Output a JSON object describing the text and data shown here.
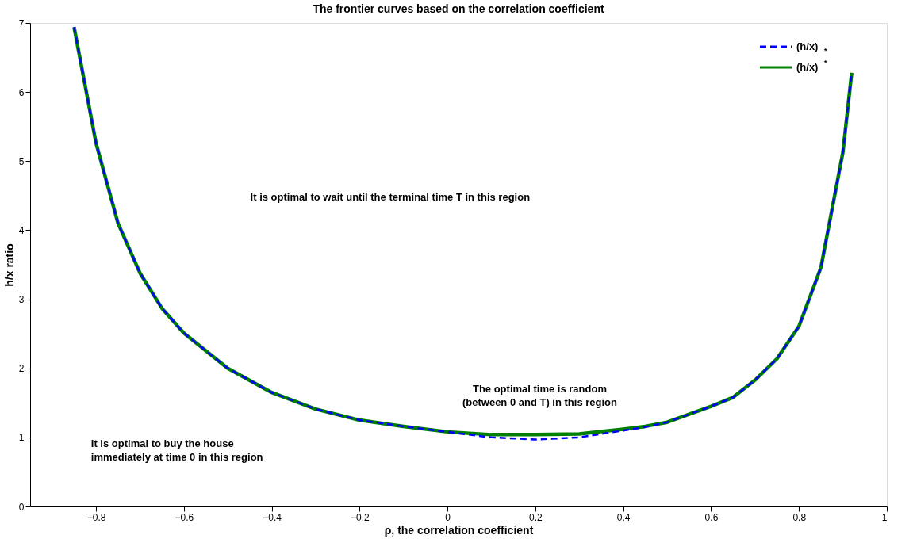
{
  "chart_data": {
    "type": "line",
    "title": "The frontier curves based on the correlation coefficient",
    "xlabel": "ρ, the correlation coefficient",
    "ylabel": "h/x ratio",
    "x": [
      -0.85,
      -0.8,
      -0.75,
      -0.7,
      -0.65,
      -0.6,
      -0.5,
      -0.4,
      -0.3,
      -0.2,
      -0.1,
      0,
      0.1,
      0.2,
      0.3,
      0.4,
      0.45,
      0.5,
      0.6,
      0.65,
      0.7,
      0.75,
      0.8,
      0.85,
      0.9,
      0.92
    ],
    "series": [
      {
        "name": "(h/x)$_{*}$",
        "color": "#0000ff",
        "line_style": "dashed",
        "values": [
          6.94,
          5.26,
          4.1,
          3.38,
          2.87,
          2.51,
          2.0,
          1.65,
          1.41,
          1.25,
          1.16,
          1.08,
          1.0,
          0.97,
          1.0,
          1.1,
          1.15,
          1.22,
          1.45,
          1.58,
          1.83,
          2.14,
          2.61,
          3.46,
          5.13,
          6.28
        ]
      },
      {
        "name": "(h/x)$^{*}$",
        "color": "#008000",
        "line_style": "solid",
        "values": [
          6.94,
          5.26,
          4.1,
          3.38,
          2.87,
          2.51,
          2.0,
          1.65,
          1.41,
          1.25,
          1.16,
          1.08,
          1.04,
          1.04,
          1.05,
          1.12,
          1.16,
          1.22,
          1.45,
          1.58,
          1.83,
          2.14,
          2.61,
          3.46,
          5.13,
          6.28
        ]
      }
    ],
    "xlim": [
      -0.95,
      1
    ],
    "xticks": [
      -0.8,
      -0.6,
      -0.4,
      -0.2,
      0,
      0.2,
      0.4,
      0.6,
      0.8,
      1
    ],
    "ylim": [
      0,
      7
    ],
    "yticks": [
      0,
      1,
      2,
      3,
      4,
      5,
      6,
      7
    ],
    "grid": false,
    "legend": "top right",
    "marker": "none",
    "annotations": [
      "It is optimal to wait until the terminal time T in this region",
      "It is optimal to buy the house\n immediately at time 0 in this region",
      {
        "text": "The optimal time is random\n(between 0 and T) in this region",
        "x": 0.21,
        "y": 1.04
      }
    ]
  }
}
